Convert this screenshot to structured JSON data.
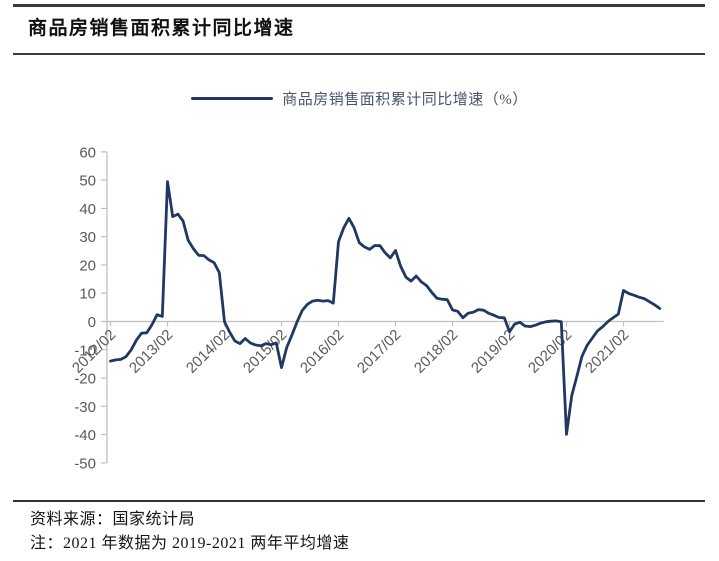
{
  "header": {
    "title": "商品房销售面积累计同比增速"
  },
  "legend": {
    "label": "商品房销售面积累计同比增速（%）"
  },
  "footer": {
    "source": "资料来源：国家统计局",
    "note": "注：2021 年数据为 2019-2021 两年平均增速"
  },
  "colors": {
    "line": "#1F3864",
    "axis": "#BFBFBF",
    "tick_label": "#595959"
  },
  "chart_data": {
    "type": "line",
    "title": "商品房销售面积累计同比增速",
    "legend": [
      "商品房销售面积累计同比增速（%）"
    ],
    "legend_position": "top-center",
    "unit": "%",
    "ylim": [
      -50,
      60
    ],
    "y_ticks": [
      60,
      50,
      40,
      30,
      20,
      10,
      0,
      -10,
      -20,
      -30,
      -40,
      -50
    ],
    "x_tick_labels": [
      "2012/02",
      "2013/02",
      "2014/02",
      "2015/02",
      "2016/02",
      "2017/02",
      "2018/02",
      "2019/02",
      "2020/02",
      "2021/02"
    ],
    "grid": "zero-line-only",
    "series": [
      {
        "name": "商品房销售面积累计同比增速（%）",
        "by_year": [
          {
            "year": "2012",
            "months_from": "02",
            "values": [
              -14.0,
              -13.6,
              -13.4,
              -12.4,
              -10.0,
              -6.6,
              -4.1,
              -4.0,
              -1.1,
              2.4,
              1.8
            ]
          },
          {
            "year": "2013",
            "months_from": "02",
            "values": [
              49.5,
              37.1,
              38.0,
              35.6,
              28.7,
              25.8,
              23.4,
              23.3,
              21.8,
              20.8,
              17.3
            ]
          },
          {
            "year": "2014",
            "months_from": "02",
            "values": [
              -0.1,
              -3.8,
              -6.9,
              -7.8,
              -6.0,
              -7.6,
              -8.3,
              -8.6,
              -7.8,
              -8.2,
              -7.6
            ]
          },
          {
            "year": "2015",
            "months_from": "02",
            "values": [
              -16.3,
              -9.2,
              -4.8,
              -0.2,
              3.9,
              6.1,
              7.2,
              7.5,
              7.2,
              7.4,
              6.5
            ]
          },
          {
            "year": "2016",
            "months_from": "02",
            "values": [
              28.2,
              33.1,
              36.5,
              33.2,
              27.9,
              26.4,
              25.5,
              26.9,
              26.8,
              24.3,
              22.5
            ]
          },
          {
            "year": "2017",
            "months_from": "02",
            "values": [
              25.1,
              19.5,
              15.7,
              14.3,
              16.1,
              14.0,
              12.7,
              10.3,
              8.2,
              7.9,
              7.7
            ]
          },
          {
            "year": "2018",
            "months_from": "02",
            "values": [
              4.1,
              3.6,
              1.3,
              2.9,
              3.3,
              4.2,
              4.0,
              2.9,
              2.2,
              1.4,
              1.3
            ]
          },
          {
            "year": "2019",
            "months_from": "02",
            "values": [
              -3.6,
              -0.9,
              -0.3,
              -1.6,
              -1.8,
              -1.3,
              -0.6,
              -0.1,
              0.1,
              0.2,
              -0.1
            ]
          },
          {
            "year": "2020",
            "months_from": "02",
            "values": [
              -39.9,
              -26.3,
              -19.3,
              -12.3,
              -8.4,
              -5.8,
              -3.3,
              -1.8,
              0.0,
              1.3,
              2.6
            ]
          },
          {
            "year": "2021",
            "months_from": "02",
            "values": [
              11.0,
              9.9,
              9.3,
              8.6,
              8.1,
              7.0,
              5.9,
              4.6
            ]
          }
        ]
      }
    ]
  }
}
